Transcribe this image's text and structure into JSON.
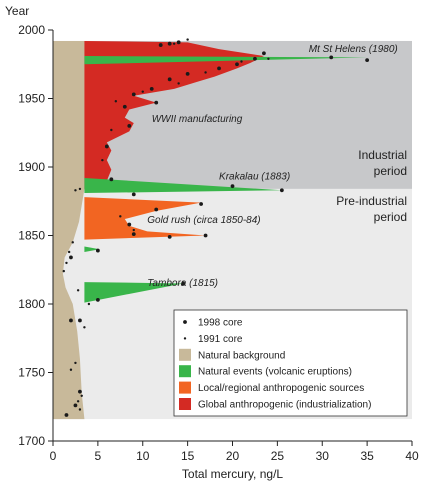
{
  "chart_data": {
    "type": "area",
    "orientation": "horizontal",
    "y_axis_title": "Year",
    "x_axis_title": "Total mercury, ng/L",
    "xlim": [
      0,
      40
    ],
    "ylim": [
      1700,
      2000
    ],
    "x_ticks": [
      0,
      5,
      10,
      15,
      20,
      25,
      30,
      35,
      40
    ],
    "y_ticks": [
      1700,
      1750,
      1800,
      1850,
      1900,
      1950,
      2000
    ],
    "periods": [
      {
        "label_line1": "Industrial",
        "label_line2": "period",
        "from": 1884,
        "to": 1992,
        "color": "#c7c8ca"
      },
      {
        "label_line1": "Pre-industrial",
        "label_line2": "period",
        "from": 1716,
        "to": 1884,
        "color": "#ebebeb"
      }
    ],
    "natural_background": {
      "x_left": 0,
      "profile": [
        {
          "year": 1716,
          "x": 3.5
        },
        {
          "year": 1735,
          "x": 3.2
        },
        {
          "year": 1760,
          "x": 3.0
        },
        {
          "year": 1780,
          "x": 2.7
        },
        {
          "year": 1800,
          "x": 2.2
        },
        {
          "year": 1812,
          "x": 1.4
        },
        {
          "year": 1822,
          "x": 1.1
        },
        {
          "year": 1834,
          "x": 1.3
        },
        {
          "year": 1845,
          "x": 2.2
        },
        {
          "year": 1860,
          "x": 2.9
        },
        {
          "year": 1884,
          "x": 3.5
        },
        {
          "year": 1992,
          "x": 3.5
        }
      ]
    },
    "annotations": [
      {
        "text": "Mt St Helens (1980)",
        "year": 1984,
        "x": 28.5
      },
      {
        "text": "WWII manufacturing",
        "year": 1933,
        "x": 11
      },
      {
        "text": "Krakalau (1883)",
        "year": 1891,
        "x": 18.5
      },
      {
        "text": "Gold rush (circa 1850-84)",
        "year": 1859,
        "x": 10.5
      },
      {
        "text": "Tambora (1815)",
        "year": 1813,
        "x": 10.5
      }
    ],
    "series": [
      {
        "name": "Global anthropogenic (industrialization)",
        "color": "#d42a23",
        "x_base": 3.5,
        "profile": [
          {
            "year": 1884,
            "x": 3.5
          },
          {
            "year": 1890,
            "x": 6.0
          },
          {
            "year": 1898,
            "x": 6.5
          },
          {
            "year": 1905,
            "x": 6.0
          },
          {
            "year": 1912,
            "x": 6.5
          },
          {
            "year": 1918,
            "x": 6.0
          },
          {
            "year": 1926,
            "x": 8.5
          },
          {
            "year": 1932,
            "x": 9.0
          },
          {
            "year": 1936,
            "x": 8.0
          },
          {
            "year": 1942,
            "x": 8.5
          },
          {
            "year": 1947,
            "x": 11.5
          },
          {
            "year": 1952,
            "x": 9.0
          },
          {
            "year": 1957,
            "x": 13.5
          },
          {
            "year": 1962,
            "x": 16.0
          },
          {
            "year": 1966,
            "x": 18.0
          },
          {
            "year": 1972,
            "x": 20.5
          },
          {
            "year": 1976,
            "x": 22.0
          },
          {
            "year": 1981,
            "x": 23.5
          },
          {
            "year": 1986,
            "x": 18.5
          },
          {
            "year": 1991,
            "x": 15.0
          },
          {
            "year": 1992,
            "x": 3.5
          }
        ]
      },
      {
        "name": "Local/regional anthropogenic sources",
        "color": "#f26522",
        "x_base": 3.5,
        "profile": [
          {
            "year": 1847,
            "x": 3.5
          },
          {
            "year": 1850,
            "x": 17.0
          },
          {
            "year": 1853,
            "x": 10.5
          },
          {
            "year": 1857,
            "x": 8.5
          },
          {
            "year": 1862,
            "x": 8.0
          },
          {
            "year": 1868,
            "x": 11.5
          },
          {
            "year": 1874,
            "x": 16.5
          },
          {
            "year": 1878,
            "x": 3.5
          }
        ]
      },
      {
        "name": "Natural events (volcanic eruptions)",
        "color": "#39b54a",
        "x_base": 3.5,
        "events": [
          {
            "peak_year": 1980,
            "peak_x": 35.0,
            "from": 1975,
            "to": 1981
          },
          {
            "peak_year": 1883,
            "peak_x": 25.5,
            "from": 1881,
            "to": 1892
          },
          {
            "peak_year": 1815,
            "peak_x": 14.5,
            "from": 1801,
            "to": 1816
          },
          {
            "peak_year": 1840,
            "peak_x": 5.2,
            "from": 1838,
            "to": 1842
          }
        ]
      }
    ],
    "points_1998_core": [
      {
        "x": 14.0,
        "year": 1991
      },
      {
        "x": 13.0,
        "year": 1990
      },
      {
        "x": 12.0,
        "year": 1989
      },
      {
        "x": 31.0,
        "year": 1980
      },
      {
        "x": 35.0,
        "year": 1978
      },
      {
        "x": 23.5,
        "year": 1983
      },
      {
        "x": 22.5,
        "year": 1979
      },
      {
        "x": 20.5,
        "year": 1975
      },
      {
        "x": 18.5,
        "year": 1972
      },
      {
        "x": 15.0,
        "year": 1968
      },
      {
        "x": 13.0,
        "year": 1964
      },
      {
        "x": 11.0,
        "year": 1957
      },
      {
        "x": 9.0,
        "year": 1953
      },
      {
        "x": 11.5,
        "year": 1947
      },
      {
        "x": 8.0,
        "year": 1944
      },
      {
        "x": 8.5,
        "year": 1930
      },
      {
        "x": 6.0,
        "year": 1915
      },
      {
        "x": 25.5,
        "year": 1883
      },
      {
        "x": 20.0,
        "year": 1886
      },
      {
        "x": 9.0,
        "year": 1880
      },
      {
        "x": 6.5,
        "year": 1891
      },
      {
        "x": 17.0,
        "year": 1850
      },
      {
        "x": 13.0,
        "year": 1849
      },
      {
        "x": 9.0,
        "year": 1851
      },
      {
        "x": 8.5,
        "year": 1858
      },
      {
        "x": 16.5,
        "year": 1873
      },
      {
        "x": 11.5,
        "year": 1869
      },
      {
        "x": 5.0,
        "year": 1839
      },
      {
        "x": 14.5,
        "year": 1815
      },
      {
        "x": 5.0,
        "year": 1803
      },
      {
        "x": 2.0,
        "year": 1788
      },
      {
        "x": 3.0,
        "year": 1788
      },
      {
        "x": 3.0,
        "year": 1736
      },
      {
        "x": 2.5,
        "year": 1726
      },
      {
        "x": 1.5,
        "year": 1719
      },
      {
        "x": 2.0,
        "year": 1834
      }
    ],
    "points_1991_core": [
      {
        "x": 15.0,
        "year": 1993
      },
      {
        "x": 13.5,
        "year": 1990
      },
      {
        "x": 24.0,
        "year": 1979
      },
      {
        "x": 21.0,
        "year": 1977
      },
      {
        "x": 17.0,
        "year": 1969
      },
      {
        "x": 14.0,
        "year": 1961
      },
      {
        "x": 10.0,
        "year": 1955
      },
      {
        "x": 7.0,
        "year": 1948
      },
      {
        "x": 6.5,
        "year": 1927
      },
      {
        "x": 5.5,
        "year": 1905
      },
      {
        "x": 3.0,
        "year": 1884
      },
      {
        "x": 2.5,
        "year": 1883
      },
      {
        "x": 9.0,
        "year": 1854
      },
      {
        "x": 7.5,
        "year": 1864
      },
      {
        "x": 2.2,
        "year": 1845
      },
      {
        "x": 1.8,
        "year": 1838
      },
      {
        "x": 1.5,
        "year": 1830
      },
      {
        "x": 1.2,
        "year": 1824
      },
      {
        "x": 2.8,
        "year": 1810
      },
      {
        "x": 4.0,
        "year": 1800
      },
      {
        "x": 3.5,
        "year": 1783
      },
      {
        "x": 2.5,
        "year": 1757
      },
      {
        "x": 3.2,
        "year": 1733
      },
      {
        "x": 2.8,
        "year": 1729
      },
      {
        "x": 3.0,
        "year": 1723
      },
      {
        "x": 2.0,
        "year": 1752
      }
    ],
    "legend": [
      {
        "label": "1998 core",
        "kind": "marker-large"
      },
      {
        "label": "1991 core",
        "kind": "marker-small"
      },
      {
        "label": "Natural background",
        "kind": "swatch",
        "color": "#c8b99a"
      },
      {
        "label": "Natural events (volcanic eruptions)",
        "kind": "swatch",
        "color": "#39b54a"
      },
      {
        "label": "Local/regional anthropogenic sources",
        "kind": "swatch",
        "color": "#f26522"
      },
      {
        "label": "Global anthropogenic (industrialization)",
        "kind": "swatch",
        "color": "#d42a23"
      }
    ],
    "legend_placement": "bottom-right",
    "grid": false
  }
}
